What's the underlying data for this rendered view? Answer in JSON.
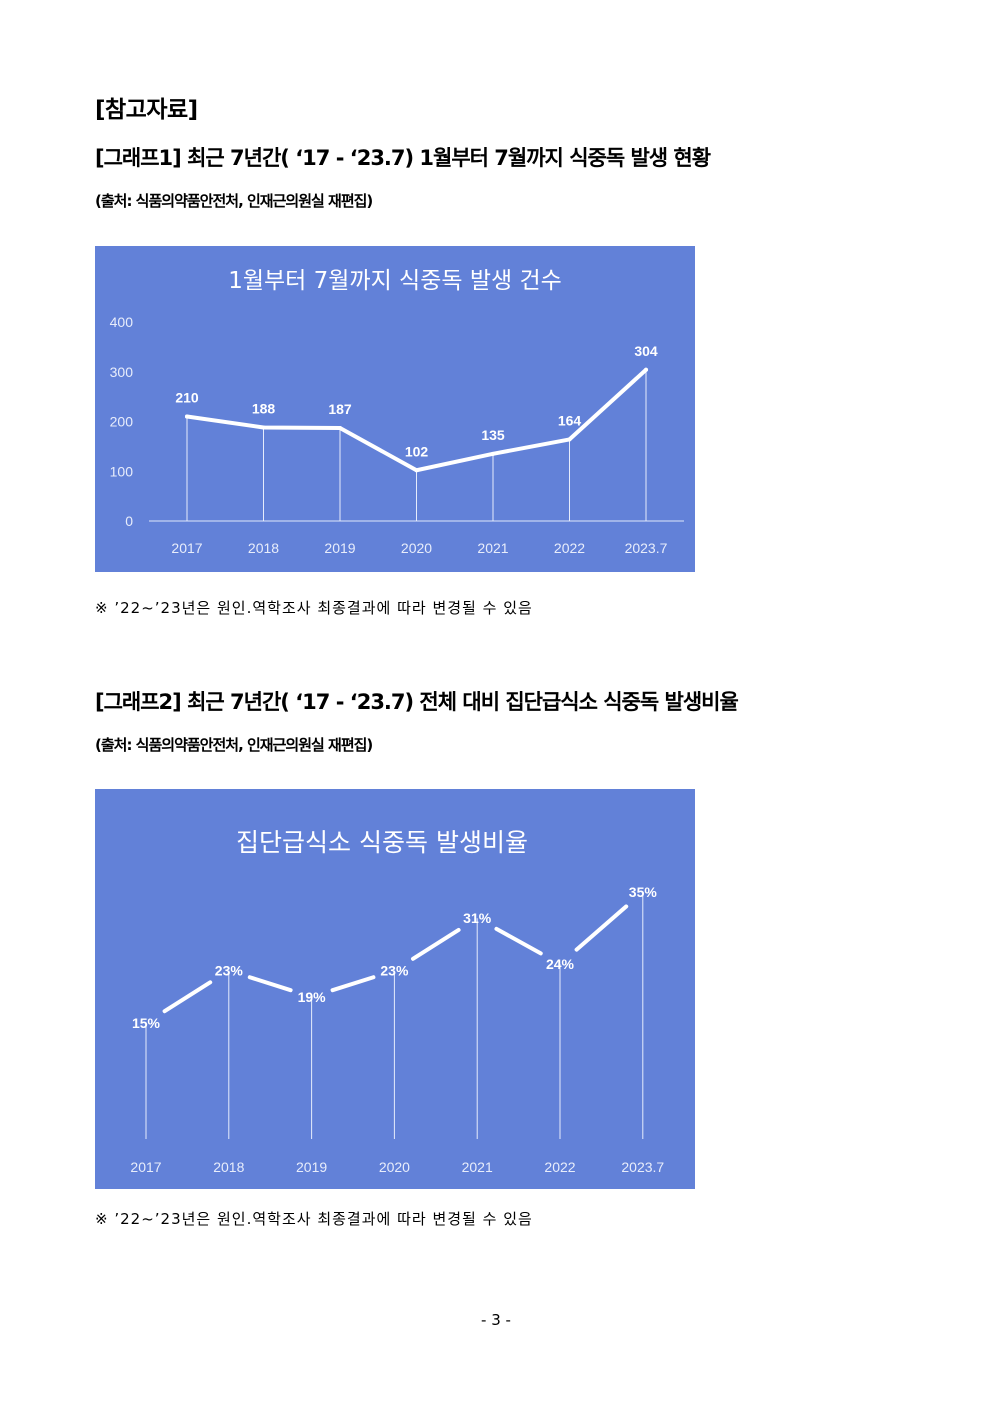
{
  "section_title": "[참고자료]",
  "graph1": {
    "heading": "[그래프1] 최근 7년간( ‘17 - ‘23.7) 1월부터 7월까지 식중독 발생 현황",
    "source": "(출처: 식품의약품안전처, 인재근의원실 재편집)",
    "note": "※ ’22~’23년은 원인.역학조사 최종결과에 따라 변경될 수 있음"
  },
  "graph2": {
    "heading": "[그래프2] 최근 7년간( ‘17 - ‘23.7) 전체 대비 집단급식소 식중독 발생비율",
    "source": "(출처: 식품의약품안전처, 인재근의원실 재편집)",
    "note": "※ ’22~’23년은 원인.역학조사 최종결과에 따라 변경될 수 있음"
  },
  "page_number": "- 3 -",
  "colors": {
    "chart_bg": "#6281d8",
    "line": "#ffffff"
  },
  "chart_data": [
    {
      "type": "line",
      "title": "1월부터 7월까지 식중독 발생 건수",
      "categories": [
        "2017",
        "2018",
        "2019",
        "2020",
        "2021",
        "2022",
        "2023.7"
      ],
      "series": [
        {
          "values": [
            210,
            188,
            187,
            102,
            135,
            164,
            304
          ]
        }
      ],
      "data_labels": [
        "210",
        "188",
        "187",
        "102",
        "135",
        "164",
        "304"
      ],
      "y_ticks": [
        "0",
        "100",
        "200",
        "300",
        "400"
      ],
      "ylim": [
        0,
        400
      ],
      "grid": false,
      "drop_lines": true
    },
    {
      "type": "line",
      "title": "집단급식소 식중독 발생비율",
      "categories": [
        "2017",
        "2018",
        "2019",
        "2020",
        "2021",
        "2022",
        "2023.7"
      ],
      "series": [
        {
          "values": [
            15,
            23,
            19,
            23,
            31,
            24,
            35
          ]
        }
      ],
      "data_labels": [
        "15%",
        "23%",
        "19%",
        "23%",
        "31%",
        "24%",
        "35%"
      ],
      "y_axis_visible": false,
      "grid": false,
      "drop_lines": true
    }
  ]
}
